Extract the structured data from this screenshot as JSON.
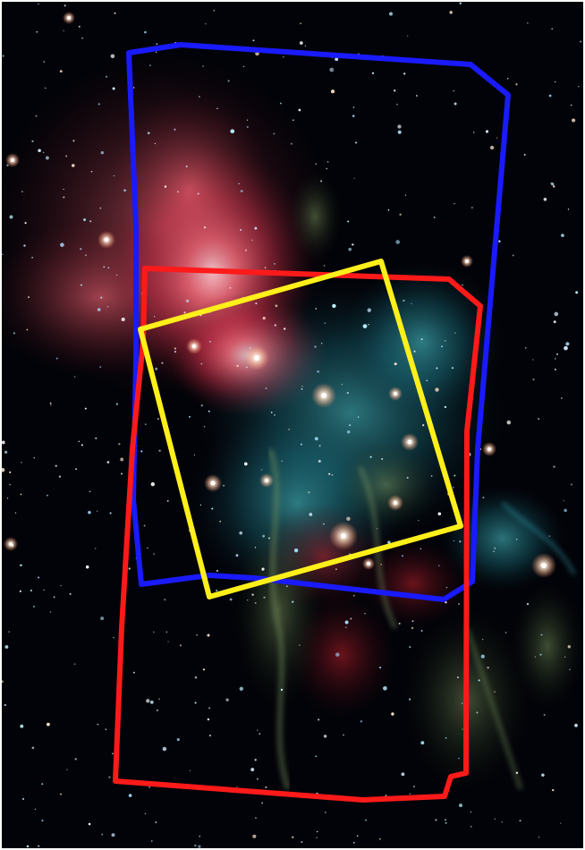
{
  "image": {
    "background": "#020308",
    "nebula_colors": {
      "red_emission": "#ff5a6e",
      "cyan_dust": "#2fa6b4",
      "green_filament": "#6b8a4c"
    },
    "footprints": [
      {
        "name": "blue-footprint",
        "color": "#1a1aff"
      },
      {
        "name": "red-footprint",
        "color": "#ff1a1a"
      },
      {
        "name": "yellow-footprint",
        "color": "#ffef1a"
      }
    ]
  }
}
